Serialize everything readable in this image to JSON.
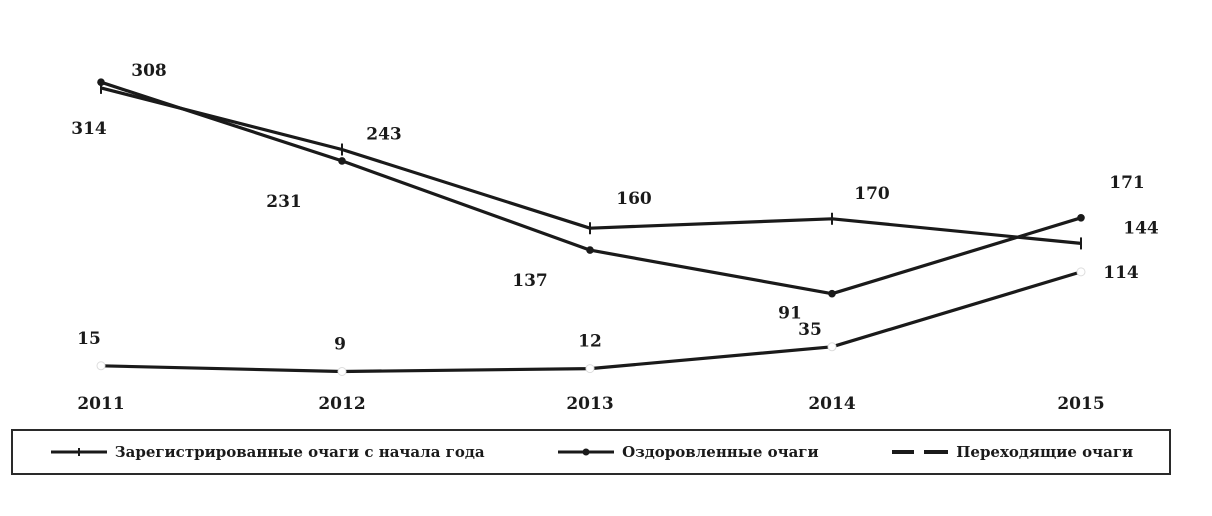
{
  "chart_data": {
    "type": "line",
    "categories": [
      "2011",
      "2012",
      "2013",
      "2014",
      "2015"
    ],
    "series": [
      {
        "name": "Зарегистрированные очаги с начала года",
        "values": [
          308,
          243,
          160,
          170,
          144
        ],
        "marker": "dash"
      },
      {
        "name": "Оздоровленные очаги",
        "values": [
          314,
          231,
          137,
          91,
          171
        ],
        "marker": "dot"
      },
      {
        "name": "Переходящие очаги",
        "values": [
          15,
          9,
          12,
          35,
          114
        ],
        "marker": "dash-thick"
      }
    ],
    "ylim": [
      0,
      330
    ],
    "grid": false,
    "legend_position": "bottom",
    "line_color": "#1a1a1a"
  }
}
